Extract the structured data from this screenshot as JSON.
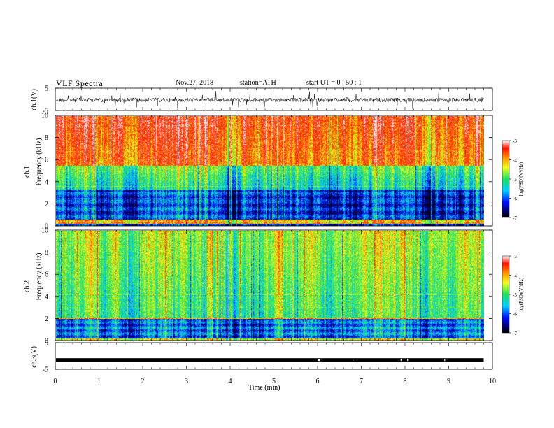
{
  "header": {
    "title": "VLF  Spectra",
    "date": "Nov.27, 2018",
    "station": "station=ATH",
    "start": "start  UT  =   0  : 50 : 1"
  },
  "chart_data": {
    "type": "heatmap",
    "xlabel": "Time  (min)",
    "xlim": [
      0,
      10
    ],
    "x_ticks": [
      "0",
      "1",
      "2",
      "3",
      "4",
      "5",
      "6",
      "7",
      "8",
      "9",
      "10"
    ],
    "data_end_min": 9.8,
    "panels": [
      {
        "id": "ch1-waveform",
        "type": "line",
        "ylabel": "ch.1(V)",
        "ylim": [
          -5,
          5
        ],
        "y_ticks": [
          "5",
          "-5"
        ],
        "approx_level_v": -0.3
      },
      {
        "id": "ch1-spectrogram",
        "type": "heatmap",
        "ylabel_top": "ch.1",
        "ylabel": "Frequency  (kHz)",
        "ylim": [
          0,
          10
        ],
        "y_ticks": [
          "0",
          "2",
          "4",
          "6",
          "8",
          "10"
        ],
        "colorbar": {
          "label": "log(PSD)(V²/Hz)",
          "range": [
            -7,
            -3
          ],
          "ticks": [
            "-3",
            "-4",
            "-5",
            "-6",
            "-7"
          ]
        },
        "dominant_band": {
          "red_above_khz": 6,
          "green_band_khz": [
            3.5,
            6
          ],
          "blue_below_khz": 3.5
        }
      },
      {
        "id": "ch2-spectrogram",
        "type": "heatmap",
        "ylabel_top": "ch.2",
        "ylabel": "Frequency  (kHz)",
        "ylim": [
          0,
          10
        ],
        "y_ticks": [
          "0",
          "2",
          "4",
          "6",
          "8",
          "10"
        ],
        "colorbar": {
          "label": "log(PSD)(V²/Hz)",
          "range": [
            -7,
            -3
          ],
          "ticks": [
            "-3",
            "-4",
            "-5",
            "-6",
            "-7"
          ]
        },
        "dominant_band": {
          "green_above_khz": 2,
          "blue_below_khz": 2
        }
      },
      {
        "id": "ch3-waveform",
        "type": "line",
        "ylabel": "ch.3(V)",
        "ylim": [
          -5,
          5
        ],
        "y_ticks": [
          "5",
          "-5"
        ],
        "approx_level_v": -1.5
      }
    ]
  },
  "colors": {
    "red": "#ff2a00",
    "orange": "#ff9a00",
    "yellow": "#f5ff2a",
    "green": "#37e06b",
    "cyan": "#10c8ff",
    "blue": "#0030ff",
    "navy": "#001090"
  }
}
